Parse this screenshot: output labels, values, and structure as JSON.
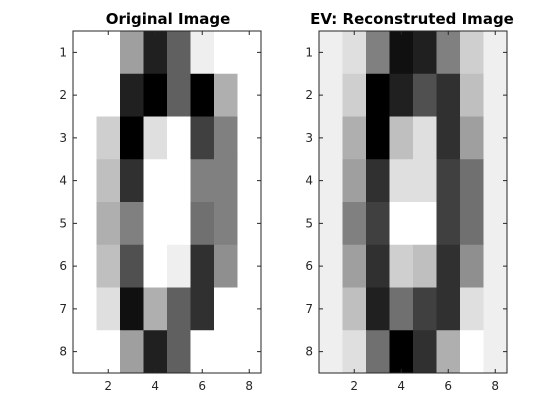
{
  "chart_data": [
    {
      "type": "heatmap",
      "title": "Original Image",
      "colormap": "gray",
      "clim": [
        0,
        16
      ],
      "x_ticks": [
        2,
        4,
        6,
        8
      ],
      "y_ticks": [
        1,
        2,
        3,
        4,
        5,
        6,
        7,
        8
      ],
      "values": [
        [
          0,
          0,
          6,
          14,
          10,
          1,
          0,
          0
        ],
        [
          0,
          0,
          14,
          16,
          10,
          16,
          5,
          0
        ],
        [
          0,
          3,
          16,
          2,
          0,
          12,
          8,
          0
        ],
        [
          0,
          4,
          13,
          0,
          0,
          8,
          8,
          0
        ],
        [
          0,
          5,
          8,
          0,
          0,
          9,
          8,
          0
        ],
        [
          0,
          4,
          11,
          0,
          1,
          13,
          7,
          0
        ],
        [
          0,
          2,
          15,
          5,
          10,
          13,
          0,
          0
        ],
        [
          0,
          0,
          6,
          14,
          10,
          0,
          0,
          0
        ]
      ]
    },
    {
      "type": "heatmap",
      "title": "EV: Reconstruted Image",
      "colormap": "gray",
      "clim": [
        0,
        16
      ],
      "x_ticks": [
        2,
        4,
        6,
        8
      ],
      "y_ticks": [
        1,
        2,
        3,
        4,
        5,
        6,
        7,
        8
      ],
      "values": [
        [
          1,
          2,
          8,
          15,
          14,
          8,
          3,
          1
        ],
        [
          1,
          3,
          16,
          14,
          11,
          13,
          4,
          1
        ],
        [
          1,
          5,
          16,
          4,
          2,
          13,
          6,
          1
        ],
        [
          1,
          6,
          13,
          2,
          2,
          12,
          9,
          1
        ],
        [
          1,
          8,
          12,
          0,
          0,
          12,
          9,
          1
        ],
        [
          1,
          6,
          13,
          3,
          4,
          13,
          7,
          1
        ],
        [
          1,
          4,
          14,
          9,
          12,
          13,
          2,
          1
        ],
        [
          1,
          2,
          9,
          16,
          13,
          5,
          0,
          1
        ]
      ]
    }
  ]
}
